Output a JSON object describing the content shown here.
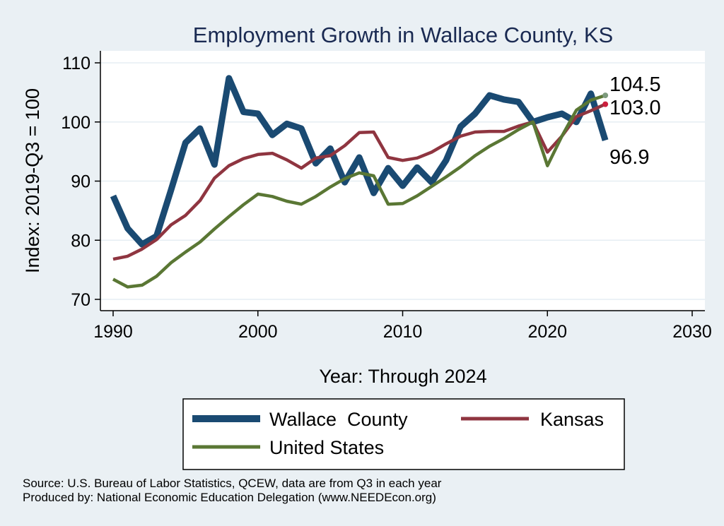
{
  "chart_data": {
    "type": "line",
    "title": "Employment Growth in Wallace County, KS",
    "xlabel": "Year: Through 2024",
    "ylabel": "Index: 2019-Q3 = 100",
    "xlim": [
      1990,
      2030
    ],
    "ylim": [
      70,
      110
    ],
    "xticks": [
      1990,
      2000,
      2010,
      2020,
      2030
    ],
    "yticks": [
      70,
      80,
      90,
      100,
      110
    ],
    "grid": true,
    "x": [
      1990,
      1991,
      1992,
      1993,
      1994,
      1995,
      1996,
      1997,
      1998,
      1999,
      2000,
      2001,
      2002,
      2003,
      2004,
      2005,
      2006,
      2007,
      2008,
      2009,
      2010,
      2011,
      2012,
      2013,
      2014,
      2015,
      2016,
      2017,
      2018,
      2019,
      2020,
      2021,
      2022,
      2023,
      2024
    ],
    "series": [
      {
        "name": "Wallace  County",
        "color": "#1a4a72",
        "values": [
          87.5,
          82.0,
          79.3,
          80.7,
          88.5,
          96.5,
          98.9,
          92.8,
          107.4,
          101.7,
          101.4,
          97.8,
          99.7,
          98.9,
          93.0,
          95.5,
          89.8,
          94.0,
          88.0,
          92.2,
          89.2,
          92.3,
          89.8,
          93.5,
          99.2,
          101.4,
          104.5,
          103.8,
          103.4,
          100.0,
          100.8,
          101.4,
          100.0,
          104.8,
          96.9
        ]
      },
      {
        "name": "Kansas",
        "color": "#8f3540",
        "values": [
          76.8,
          77.3,
          78.5,
          80.1,
          82.6,
          84.2,
          86.7,
          90.5,
          92.6,
          93.8,
          94.5,
          94.7,
          93.6,
          92.2,
          93.9,
          94.3,
          96.0,
          98.2,
          98.3,
          94.0,
          93.5,
          93.9,
          94.9,
          96.3,
          97.6,
          98.3,
          98.4,
          98.4,
          99.3,
          100.0,
          94.9,
          97.6,
          100.9,
          101.9,
          103.0
        ]
      },
      {
        "name": "United States",
        "color": "#5a7734",
        "values": [
          73.4,
          72.1,
          72.4,
          73.9,
          76.2,
          78.0,
          79.7,
          81.9,
          84.0,
          86.0,
          87.8,
          87.4,
          86.6,
          86.1,
          87.4,
          89.0,
          90.4,
          91.4,
          90.9,
          86.1,
          86.2,
          87.5,
          89.1,
          90.7,
          92.4,
          94.3,
          95.9,
          97.2,
          98.7,
          100.0,
          92.6,
          97.6,
          102.0,
          103.7,
          104.5
        ]
      }
    ],
    "end_labels": [
      "104.5",
      "103.0",
      "96.9"
    ],
    "legend": {
      "placement": "bottom",
      "entries": [
        "Wallace  County",
        "Kansas",
        "United States"
      ]
    },
    "notes": [
      "Source: U.S. Bureau of Labor Statistics, QCEW, data are from Q3 in each year",
      "Produced by: National Economic Education Delegation (www.NEEDEcon.org)"
    ]
  }
}
